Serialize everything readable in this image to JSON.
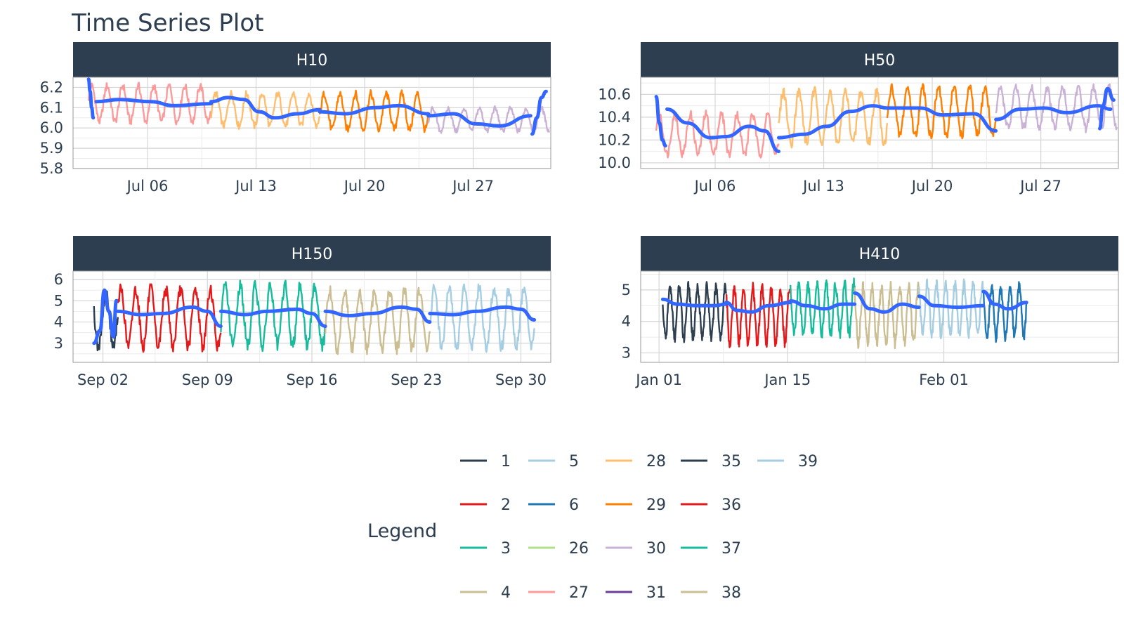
{
  "title": "Time Series Plot",
  "legend": {
    "title": "Legend",
    "items": [
      {
        "id": "1",
        "color": "#2c3e50"
      },
      {
        "id": "2",
        "color": "#e31a1c"
      },
      {
        "id": "3",
        "color": "#18bc9c"
      },
      {
        "id": "4",
        "color": "#ccbe93"
      },
      {
        "id": "5",
        "color": "#a6cee3"
      },
      {
        "id": "6",
        "color": "#1f78b4"
      },
      {
        "id": "26",
        "color": "#b2df8a"
      },
      {
        "id": "27",
        "color": "#fb9a99"
      },
      {
        "id": "28",
        "color": "#fdbf6f"
      },
      {
        "id": "29",
        "color": "#ff7f00"
      },
      {
        "id": "30",
        "color": "#cab2d6"
      },
      {
        "id": "31",
        "color": "#6a3d9a"
      },
      {
        "id": "35",
        "color": "#2c3e50"
      },
      {
        "id": "36",
        "color": "#e31a1c"
      },
      {
        "id": "37",
        "color": "#18bc9c"
      },
      {
        "id": "38",
        "color": "#ccbe93"
      },
      {
        "id": "39",
        "color": "#a6cee3"
      }
    ]
  },
  "smooth_color": "#3366ff",
  "chart_data": [
    {
      "type": "line",
      "panel": "H10",
      "x_unit": "days",
      "x_range": [
        0,
        30.8
      ],
      "xticks": [
        {
          "pos": 4.8,
          "label": "Jul 06"
        },
        {
          "pos": 11.8,
          "label": "Jul 13"
        },
        {
          "pos": 18.8,
          "label": "Jul 20"
        },
        {
          "pos": 25.8,
          "label": "Jul 27"
        }
      ],
      "ylim": [
        5.8,
        6.25
      ],
      "yticks": [
        5.8,
        5.9,
        6.0,
        6.1,
        6.2
      ],
      "series": [
        {
          "id": "27",
          "start": 1.0,
          "end": 8.9,
          "mean": 6.12,
          "amp": 0.11
        },
        {
          "id": "28",
          "start": 8.9,
          "end": 15.9,
          "mean": 6.09,
          "amp": 0.1
        },
        {
          "id": "29",
          "start": 15.9,
          "end": 22.9,
          "mean": 6.08,
          "amp": 0.11
        },
        {
          "id": "30",
          "start": 22.9,
          "end": 30.7,
          "mean": 6.04,
          "amp": 0.07
        }
      ],
      "smooth": [
        [
          [
            1.0,
            6.24
          ],
          [
            1.1,
            6.18
          ],
          [
            1.2,
            6.1
          ],
          [
            1.3,
            6.05
          ]
        ],
        [
          [
            1.5,
            6.13
          ],
          [
            3.0,
            6.14
          ],
          [
            5.0,
            6.13
          ],
          [
            6.5,
            6.11
          ],
          [
            8.9,
            6.12
          ]
        ],
        [
          [
            8.9,
            6.13
          ],
          [
            10.0,
            6.15
          ],
          [
            11.0,
            6.14
          ],
          [
            12.0,
            6.08
          ],
          [
            13.0,
            6.05
          ],
          [
            14.5,
            6.07
          ],
          [
            15.9,
            6.09
          ]
        ],
        [
          [
            15.9,
            6.08
          ],
          [
            17.5,
            6.07
          ],
          [
            19.5,
            6.1
          ],
          [
            21.0,
            6.11
          ],
          [
            22.9,
            6.07
          ]
        ],
        [
          [
            22.9,
            6.06
          ],
          [
            24.5,
            6.07
          ],
          [
            26.0,
            6.02
          ],
          [
            27.5,
            6.01
          ],
          [
            29.5,
            6.06
          ]
        ],
        [
          [
            29.6,
            5.97
          ],
          [
            29.9,
            6.05
          ],
          [
            30.2,
            6.15
          ],
          [
            30.5,
            6.18
          ]
        ]
      ]
    },
    {
      "type": "line",
      "panel": "H50",
      "x_unit": "days",
      "x_range": [
        0,
        30.8
      ],
      "xticks": [
        {
          "pos": 4.8,
          "label": "Jul 06"
        },
        {
          "pos": 11.8,
          "label": "Jul 13"
        },
        {
          "pos": 18.8,
          "label": "Jul 20"
        },
        {
          "pos": 25.8,
          "label": "Jul 27"
        }
      ],
      "ylim": [
        9.95,
        10.75
      ],
      "yticks": [
        10.0,
        10.2,
        10.4,
        10.6
      ],
      "series": [
        {
          "id": "27",
          "start": 1.0,
          "end": 8.9,
          "mean": 10.25,
          "amp": 0.22
        },
        {
          "id": "28",
          "start": 8.9,
          "end": 15.9,
          "mean": 10.4,
          "amp": 0.28
        },
        {
          "id": "29",
          "start": 15.9,
          "end": 22.9,
          "mean": 10.45,
          "amp": 0.26
        },
        {
          "id": "30",
          "start": 22.9,
          "end": 30.7,
          "mean": 10.48,
          "amp": 0.22
        }
      ],
      "smooth": [
        [
          [
            1.0,
            10.58
          ],
          [
            1.2,
            10.35
          ],
          [
            1.4,
            10.2
          ],
          [
            1.6,
            10.15
          ]
        ],
        [
          [
            1.7,
            10.47
          ],
          [
            3.0,
            10.35
          ],
          [
            4.5,
            10.22
          ],
          [
            5.5,
            10.23
          ],
          [
            7.0,
            10.32
          ],
          [
            8.0,
            10.28
          ],
          [
            8.9,
            10.1
          ]
        ],
        [
          [
            8.9,
            10.22
          ],
          [
            10.5,
            10.25
          ],
          [
            12.0,
            10.32
          ],
          [
            13.5,
            10.45
          ],
          [
            15.0,
            10.5
          ],
          [
            15.9,
            10.48
          ]
        ],
        [
          [
            15.9,
            10.48
          ],
          [
            18.0,
            10.48
          ],
          [
            19.5,
            10.42
          ],
          [
            21.5,
            10.43
          ],
          [
            22.9,
            10.28
          ]
        ],
        [
          [
            22.9,
            10.38
          ],
          [
            24.5,
            10.47
          ],
          [
            26.0,
            10.48
          ],
          [
            27.5,
            10.44
          ],
          [
            29.5,
            10.5
          ],
          [
            30.3,
            10.47
          ]
        ],
        [
          [
            29.6,
            10.3
          ],
          [
            29.8,
            10.5
          ],
          [
            30.1,
            10.65
          ],
          [
            30.5,
            10.55
          ]
        ]
      ]
    },
    {
      "type": "line",
      "panel": "H150",
      "x_unit": "days",
      "x_range": [
        0,
        32
      ],
      "xticks": [
        {
          "pos": 2.0,
          "label": "Sep 02"
        },
        {
          "pos": 9.0,
          "label": "Sep 09"
        },
        {
          "pos": 16.0,
          "label": "Sep 16"
        },
        {
          "pos": 23.0,
          "label": "Sep 23"
        },
        {
          "pos": 30.0,
          "label": "Sep 30"
        }
      ],
      "ylim": [
        2.1,
        6.4
      ],
      "yticks": [
        3,
        4,
        5,
        6
      ],
      "series": [
        {
          "id": "1",
          "start": 1.4,
          "end": 3.0,
          "mean": 4.1,
          "amp": 1.6
        },
        {
          "id": "2",
          "start": 3.0,
          "end": 9.9,
          "mean": 4.2,
          "amp": 1.7
        },
        {
          "id": "3",
          "start": 9.9,
          "end": 16.9,
          "mean": 4.3,
          "amp": 1.8
        },
        {
          "id": "4",
          "start": 16.9,
          "end": 23.9,
          "mean": 4.1,
          "amp": 1.7
        },
        {
          "id": "5",
          "start": 23.9,
          "end": 30.9,
          "mean": 4.2,
          "amp": 1.7
        }
      ],
      "smooth": [
        [
          [
            1.4,
            3.0
          ],
          [
            1.8,
            3.6
          ],
          [
            2.1,
            5.5
          ],
          [
            2.4,
            4.5
          ],
          [
            2.7,
            3.3
          ],
          [
            2.9,
            5.0
          ]
        ],
        [
          [
            3.0,
            4.5
          ],
          [
            4.5,
            4.35
          ],
          [
            6.0,
            4.4
          ],
          [
            8.0,
            4.7
          ],
          [
            9.0,
            4.5
          ],
          [
            9.9,
            3.8
          ]
        ],
        [
          [
            9.9,
            4.5
          ],
          [
            11.5,
            4.35
          ],
          [
            13.0,
            4.5
          ],
          [
            15.0,
            4.6
          ],
          [
            16.0,
            4.4
          ],
          [
            16.9,
            3.8
          ]
        ],
        [
          [
            16.9,
            4.5
          ],
          [
            18.5,
            4.3
          ],
          [
            20.0,
            4.4
          ],
          [
            22.0,
            4.7
          ],
          [
            23.0,
            4.6
          ],
          [
            23.9,
            4.0
          ]
        ],
        [
          [
            23.9,
            4.4
          ],
          [
            25.5,
            4.35
          ],
          [
            27.0,
            4.5
          ],
          [
            29.0,
            4.7
          ],
          [
            30.0,
            4.6
          ],
          [
            30.9,
            4.1
          ]
        ]
      ]
    },
    {
      "type": "line",
      "panel": "H410",
      "x_unit": "days",
      "x_range": [
        0,
        52
      ],
      "xticks": [
        {
          "pos": 2.0,
          "label": "Jan 01"
        },
        {
          "pos": 16.0,
          "label": "Jan 15"
        },
        {
          "pos": 33.0,
          "label": "Feb 01"
        }
      ],
      "ylim": [
        2.7,
        5.6
      ],
      "yticks": [
        3,
        4,
        5
      ],
      "series": [
        {
          "id": "35",
          "start": 2.4,
          "end": 9.3,
          "mean": 4.3,
          "amp": 1.0
        },
        {
          "id": "36",
          "start": 9.3,
          "end": 16.3,
          "mean": 4.2,
          "amp": 1.1
        },
        {
          "id": "37",
          "start": 16.3,
          "end": 23.3,
          "mean": 4.4,
          "amp": 1.0
        },
        {
          "id": "38",
          "start": 23.3,
          "end": 30.3,
          "mean": 4.2,
          "amp": 1.1
        },
        {
          "id": "39",
          "start": 30.3,
          "end": 37.3,
          "mean": 4.4,
          "amp": 1.0
        },
        {
          "id": "6",
          "start": 37.3,
          "end": 42.0,
          "mean": 4.3,
          "amp": 1.0
        }
      ],
      "smooth": [
        [
          [
            2.4,
            4.7
          ],
          [
            4.0,
            4.55
          ],
          [
            6.0,
            4.5
          ],
          [
            8.0,
            4.5
          ],
          [
            9.3,
            4.55
          ]
        ],
        [
          [
            9.3,
            4.6
          ],
          [
            10.5,
            4.35
          ],
          [
            12.0,
            4.3
          ],
          [
            14.0,
            4.5
          ],
          [
            16.3,
            4.6
          ]
        ],
        [
          [
            16.3,
            4.65
          ],
          [
            18.0,
            4.5
          ],
          [
            20.0,
            4.4
          ],
          [
            22.0,
            4.55
          ],
          [
            23.3,
            4.55
          ]
        ],
        [
          [
            23.3,
            4.9
          ],
          [
            25.0,
            4.4
          ],
          [
            26.5,
            4.3
          ],
          [
            28.5,
            4.55
          ],
          [
            30.3,
            4.45
          ]
        ],
        [
          [
            30.3,
            4.8
          ],
          [
            32.0,
            4.5
          ],
          [
            34.5,
            4.45
          ],
          [
            37.3,
            4.5
          ]
        ],
        [
          [
            37.3,
            4.95
          ],
          [
            38.5,
            4.55
          ],
          [
            40.0,
            4.4
          ],
          [
            42.0,
            4.6
          ]
        ]
      ]
    }
  ]
}
